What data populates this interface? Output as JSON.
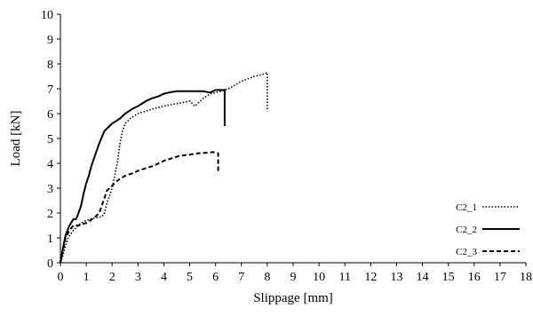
{
  "chart_data": {
    "type": "line",
    "title": "",
    "xlabel": "Slippage [mm]",
    "ylabel": "Load [kN]",
    "xlim": [
      0,
      18
    ],
    "ylim": [
      0,
      10
    ],
    "xticks": [
      "0",
      "1",
      "2",
      "3",
      "4",
      "5",
      "6",
      "7",
      "8",
      "9",
      "10",
      "11",
      "12",
      "13",
      "14",
      "15",
      "16",
      "17",
      "18"
    ],
    "yticks": [
      "0",
      "1",
      "2",
      "3",
      "4",
      "5",
      "6",
      "7",
      "8",
      "9",
      "10"
    ],
    "grid": false,
    "legend_position": "bottom-right",
    "series": [
      {
        "name": "C2_1",
        "style": "dotted",
        "color": "#000000",
        "x": [
          0,
          0.1,
          0.2,
          0.3,
          0.5,
          0.8,
          1.0,
          1.3,
          1.6,
          1.7,
          1.8,
          1.9,
          2.0,
          2.1,
          2.2,
          2.3,
          2.4,
          2.5,
          2.7,
          3.0,
          3.3,
          3.6,
          4.0,
          4.5,
          5.0,
          5.2,
          5.3,
          5.5,
          5.8,
          6.2,
          6.5,
          7.0,
          7.5,
          7.9,
          8.0,
          8.0,
          8.0
        ],
        "y": [
          0,
          0.3,
          0.7,
          1.0,
          1.3,
          1.6,
          1.7,
          1.8,
          1.85,
          2.0,
          2.4,
          2.7,
          3.0,
          3.5,
          4.0,
          4.8,
          5.3,
          5.6,
          5.8,
          6.0,
          6.1,
          6.2,
          6.3,
          6.4,
          6.5,
          6.3,
          6.4,
          6.6,
          6.8,
          6.9,
          7.0,
          7.3,
          7.5,
          7.6,
          7.65,
          6.5,
          6.1
        ]
      },
      {
        "name": "C2_2",
        "style": "solid",
        "color": "#000000",
        "x": [
          0,
          0.1,
          0.2,
          0.35,
          0.5,
          0.6,
          0.7,
          0.8,
          0.9,
          1.0,
          1.1,
          1.2,
          1.3,
          1.5,
          1.7,
          1.9,
          2.0,
          2.3,
          2.5,
          2.8,
          3.0,
          3.3,
          3.5,
          3.8,
          4.0,
          4.2,
          4.5,
          5.0,
          5.5,
          5.8,
          6.0,
          6.2,
          6.35,
          6.35,
          6.35
        ],
        "y": [
          0,
          0.6,
          1.1,
          1.5,
          1.75,
          1.75,
          2.0,
          2.3,
          2.8,
          3.2,
          3.5,
          3.9,
          4.2,
          4.8,
          5.3,
          5.5,
          5.6,
          5.8,
          6.0,
          6.2,
          6.3,
          6.5,
          6.6,
          6.7,
          6.8,
          6.85,
          6.9,
          6.9,
          6.9,
          6.85,
          6.95,
          6.95,
          6.95,
          6.0,
          5.5
        ]
      },
      {
        "name": "C2_3",
        "style": "dashed",
        "color": "#000000",
        "x": [
          0,
          0.1,
          0.2,
          0.35,
          0.5,
          0.7,
          1.0,
          1.3,
          1.5,
          1.6,
          1.7,
          1.8,
          2.0,
          2.2,
          2.5,
          2.8,
          3.0,
          3.3,
          3.6,
          4.0,
          4.3,
          4.6,
          5.0,
          5.3,
          5.6,
          5.9,
          6.1,
          6.1,
          6.1
        ],
        "y": [
          0,
          0.5,
          1.0,
          1.3,
          1.5,
          1.5,
          1.6,
          1.8,
          2.0,
          2.3,
          2.6,
          2.9,
          3.1,
          3.3,
          3.5,
          3.6,
          3.7,
          3.8,
          3.9,
          4.1,
          4.2,
          4.3,
          4.35,
          4.4,
          4.42,
          4.45,
          4.4,
          3.8,
          3.6
        ]
      }
    ]
  }
}
